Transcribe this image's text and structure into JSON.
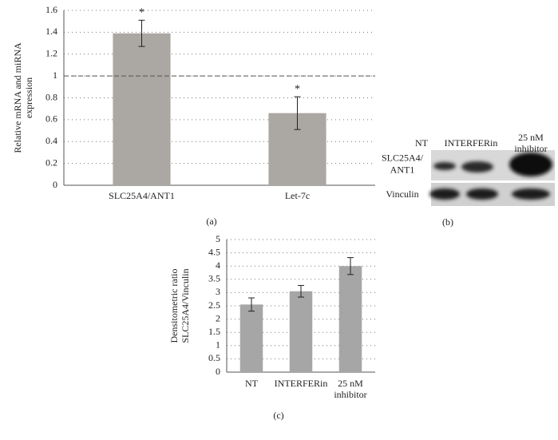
{
  "chart_data": [
    {
      "type": "bar",
      "y_label": [
        "Relative mRNA and miRNA",
        "expression"
      ],
      "categories": [
        "SLC25A4/ANT1",
        "Let-7c"
      ],
      "values": [
        1.39,
        0.66
      ],
      "errors": [
        0.12,
        0.15
      ],
      "annotations": [
        "*",
        "*"
      ],
      "reference_line": 1,
      "color": "#aba7a3",
      "ylim": [
        0,
        1.6
      ],
      "yticks": [
        0,
        0.2,
        0.4,
        0.6,
        0.8,
        1,
        1.2,
        1.4,
        1.6
      ],
      "grid": true,
      "caption": "(a)"
    },
    {
      "type": "bar",
      "y_label": [
        "Densitometric ratio",
        "SLC25A4/Vinculin"
      ],
      "categories": [
        "NT",
        "INTERFERin",
        [
          "25 nM",
          "inhibitor"
        ]
      ],
      "values": [
        2.55,
        3.05,
        4.0
      ],
      "errors": [
        0.25,
        0.22,
        0.32
      ],
      "color": "#a6a6a6",
      "ylim": [
        0,
        5
      ],
      "yticks": [
        0,
        0.5,
        1,
        1.5,
        2,
        2.5,
        3,
        3.5,
        4,
        4.5,
        5
      ],
      "grid": true,
      "caption": "(c)"
    }
  ],
  "blot": {
    "lanes": [
      "NT",
      "INTERFERin",
      [
        "25 nM",
        "inhibitor"
      ]
    ],
    "rows": [
      [
        "SLC25A4/",
        "ANT1"
      ],
      "Vinculin"
    ],
    "caption": "(b)"
  }
}
